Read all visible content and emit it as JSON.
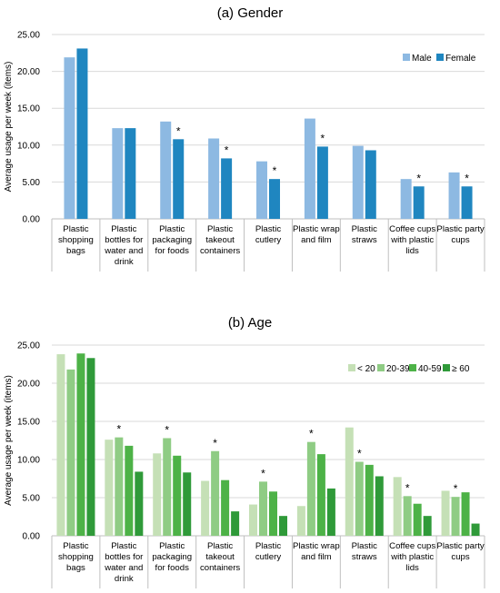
{
  "chart_data": [
    {
      "type": "bar",
      "title": "(a) Gender",
      "ylabel": "Average usage per week (items)",
      "ylim": [
        0,
        25
      ],
      "yticks": [
        "0.00",
        "5.00",
        "10.00",
        "15.00",
        "20.00",
        "25.00"
      ],
      "legend_position": "top-right",
      "grid": true,
      "categories": [
        [
          "Plastic",
          "shopping",
          "bags"
        ],
        [
          "Plastic",
          "bottles for",
          "water and",
          "drink"
        ],
        [
          "Plastic",
          "packaging",
          "for foods"
        ],
        [
          "Plastic",
          "takeout",
          "containers"
        ],
        [
          "Plastic",
          "cutlery"
        ],
        [
          "Plastic wrap",
          "and film"
        ],
        [
          "Plastic",
          "straws"
        ],
        [
          "Coffee cups",
          "with plastic",
          "lids"
        ],
        [
          "Plastic party",
          "cups"
        ]
      ],
      "series": [
        {
          "name": "Male",
          "color": "#8DB9E2",
          "values": [
            21.9,
            12.3,
            13.2,
            10.9,
            7.8,
            13.6,
            9.9,
            5.4,
            6.3
          ]
        },
        {
          "name": "Female",
          "color": "#1F86C0",
          "values": [
            23.1,
            12.3,
            10.8,
            8.2,
            5.4,
            9.8,
            9.3,
            4.4,
            4.4
          ]
        }
      ],
      "significance": [
        false,
        false,
        true,
        true,
        true,
        true,
        false,
        true,
        true
      ],
      "significance_mark": "*"
    },
    {
      "type": "bar",
      "title": "(b) Age",
      "ylabel": "Average usage per week (items)",
      "ylim": [
        0,
        25
      ],
      "yticks": [
        "0.00",
        "5.00",
        "10.00",
        "15.00",
        "20.00",
        "25.00"
      ],
      "legend_position": "top-right",
      "grid": true,
      "categories": [
        [
          "Plastic",
          "shopping",
          "bags"
        ],
        [
          "Plastic",
          "bottles for",
          "water and",
          "drink"
        ],
        [
          "Plastic",
          "packaging",
          "for foods"
        ],
        [
          "Plastic",
          "takeout",
          "containers"
        ],
        [
          "Plastic",
          "cutlery"
        ],
        [
          "Plastic wrap",
          "and film"
        ],
        [
          "Plastic",
          "straws"
        ],
        [
          "Coffee cups",
          "with plastic",
          "lids"
        ],
        [
          "Plastic party",
          "cups"
        ]
      ],
      "series": [
        {
          "name": "< 20",
          "color": "#C5E0B6",
          "values": [
            23.8,
            12.6,
            10.8,
            7.2,
            4.1,
            3.9,
            14.2,
            7.7,
            5.9
          ]
        },
        {
          "name": "20-39",
          "color": "#8FCC84",
          "values": [
            21.8,
            12.9,
            12.8,
            11.1,
            7.1,
            12.3,
            9.7,
            5.2,
            5.1
          ]
        },
        {
          "name": "40-59",
          "color": "#4DB247",
          "values": [
            23.9,
            11.8,
            10.5,
            7.3,
            5.8,
            10.7,
            9.3,
            4.2,
            5.7
          ]
        },
        {
          "name": "≥ 60",
          "color": "#2F9A39",
          "values": [
            23.3,
            8.4,
            8.3,
            3.2,
            2.6,
            6.2,
            7.8,
            2.6,
            1.6
          ]
        }
      ],
      "significance": [
        false,
        true,
        true,
        true,
        true,
        true,
        true,
        true,
        true
      ],
      "significance_mark": "*"
    }
  ]
}
